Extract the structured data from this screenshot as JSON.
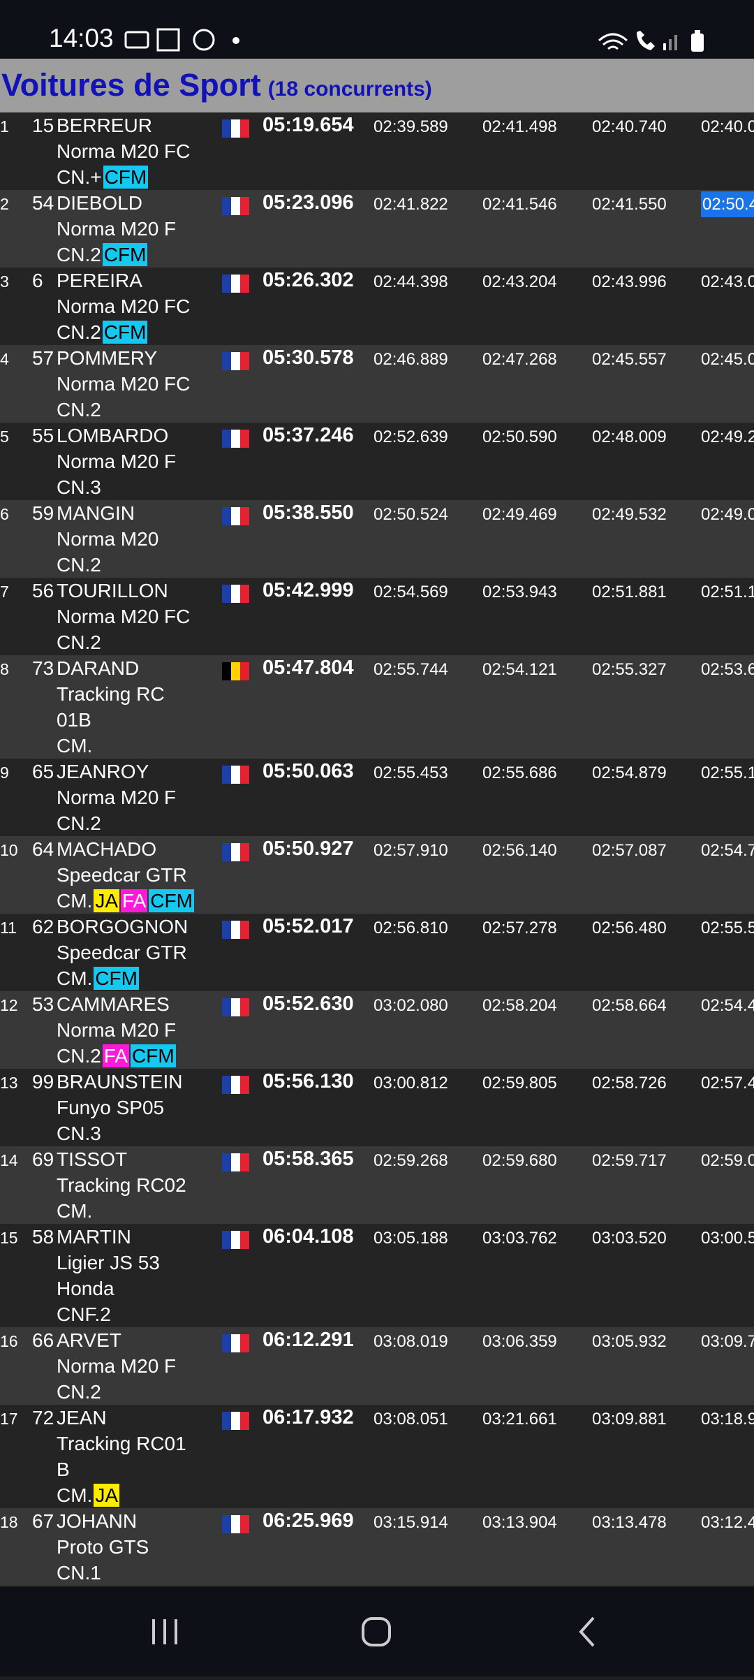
{
  "status_bar": {
    "time": "14:03"
  },
  "header": {
    "title": "Voitures de Sport",
    "subtitle": "(18 concurrents)"
  },
  "rows": [
    {
      "pos": "1",
      "num": "15",
      "name": "BERREUR",
      "car": [
        "Norma M20 FC"
      ],
      "class": "CN.+",
      "tags": [
        "CFM"
      ],
      "country": "fr",
      "total": "05:19.654",
      "laps": [
        "02:39.589",
        "02:41.498",
        "02:40.740",
        "02:40.0"
      ]
    },
    {
      "pos": "2",
      "num": "54",
      "name": "DIEBOLD",
      "car": [
        "Norma M20 F"
      ],
      "class": "CN.2",
      "tags": [
        "CFM"
      ],
      "country": "fr",
      "total": "05:23.096",
      "laps": [
        "02:41.822",
        "02:41.546",
        "02:41.550",
        "02:50.4"
      ],
      "highlight_lap": 3
    },
    {
      "pos": "3",
      "num": "6",
      "name": "PEREIRA",
      "car": [
        "Norma M20 FC"
      ],
      "class": "CN.2",
      "tags": [
        "CFM"
      ],
      "country": "fr",
      "total": "05:26.302",
      "laps": [
        "02:44.398",
        "02:43.204",
        "02:43.996",
        "02:43.0"
      ]
    },
    {
      "pos": "4",
      "num": "57",
      "name": "POMMERY",
      "car": [
        "Norma M20 FC"
      ],
      "class": "CN.2",
      "tags": [],
      "country": "fr",
      "total": "05:30.578",
      "laps": [
        "02:46.889",
        "02:47.268",
        "02:45.557",
        "02:45.0"
      ]
    },
    {
      "pos": "5",
      "num": "55",
      "name": "LOMBARDO",
      "car": [
        "Norma M20 F"
      ],
      "class": "CN.3",
      "tags": [],
      "country": "fr",
      "total": "05:37.246",
      "laps": [
        "02:52.639",
        "02:50.590",
        "02:48.009",
        "02:49.2"
      ]
    },
    {
      "pos": "6",
      "num": "59",
      "name": "MANGIN",
      "car": [
        "Norma M20"
      ],
      "class": "CN.2",
      "tags": [],
      "country": "fr",
      "total": "05:38.550",
      "laps": [
        "02:50.524",
        "02:49.469",
        "02:49.532",
        "02:49.0"
      ]
    },
    {
      "pos": "7",
      "num": "56",
      "name": "TOURILLON",
      "car": [
        "Norma M20 FC"
      ],
      "class": "CN.2",
      "tags": [],
      "country": "fr",
      "total": "05:42.999",
      "laps": [
        "02:54.569",
        "02:53.943",
        "02:51.881",
        "02:51.1"
      ]
    },
    {
      "pos": "8",
      "num": "73",
      "name": "DARAND",
      "car": [
        "Tracking RC",
        "01B"
      ],
      "class": "CM.",
      "tags": [],
      "country": "be",
      "total": "05:47.804",
      "laps": [
        "02:55.744",
        "02:54.121",
        "02:55.327",
        "02:53.6"
      ]
    },
    {
      "pos": "9",
      "num": "65",
      "name": "JEANROY",
      "car": [
        "Norma M20 F"
      ],
      "class": "CN.2",
      "tags": [],
      "country": "fr",
      "total": "05:50.063",
      "laps": [
        "02:55.453",
        "02:55.686",
        "02:54.879",
        "02:55.1"
      ]
    },
    {
      "pos": "10",
      "num": "64",
      "name": "MACHADO",
      "car": [
        "Speedcar GTR"
      ],
      "class": "CM.",
      "tags": [
        "JA",
        "FA",
        "CFM"
      ],
      "country": "fr",
      "total": "05:50.927",
      "laps": [
        "02:57.910",
        "02:56.140",
        "02:57.087",
        "02:54.7"
      ]
    },
    {
      "pos": "11",
      "num": "62",
      "name": "BORGOGNON",
      "car": [
        "Speedcar GTR"
      ],
      "class": "CM.",
      "tags": [
        "CFM"
      ],
      "country": "fr",
      "total": "05:52.017",
      "laps": [
        "02:56.810",
        "02:57.278",
        "02:56.480",
        "02:55.5"
      ]
    },
    {
      "pos": "12",
      "num": "53",
      "name": "CAMMARES",
      "car": [
        "Norma M20 F"
      ],
      "class": "CN.2",
      "tags": [
        "FA",
        "CFM"
      ],
      "country": "fr",
      "total": "05:52.630",
      "laps": [
        "03:02.080",
        "02:58.204",
        "02:58.664",
        "02:54.4"
      ]
    },
    {
      "pos": "13",
      "num": "99",
      "name": "BRAUNSTEIN",
      "car": [
        "Funyo SP05"
      ],
      "class": "CN.3",
      "tags": [],
      "country": "fr",
      "total": "05:56.130",
      "laps": [
        "03:00.812",
        "02:59.805",
        "02:58.726",
        "02:57.4"
      ]
    },
    {
      "pos": "14",
      "num": "69",
      "name": "TISSOT",
      "car": [
        "Tracking RC02"
      ],
      "class": "CM.",
      "tags": [],
      "country": "fr",
      "total": "05:58.365",
      "laps": [
        "02:59.268",
        "02:59.680",
        "02:59.717",
        "02:59.0"
      ]
    },
    {
      "pos": "15",
      "num": "58",
      "name": "MARTIN",
      "car": [
        "Ligier JS 53",
        "Honda"
      ],
      "class": "CNF.2",
      "tags": [],
      "country": "fr",
      "total": "06:04.108",
      "laps": [
        "03:05.188",
        "03:03.762",
        "03:03.520",
        "03:00.5"
      ]
    },
    {
      "pos": "16",
      "num": "66",
      "name": "ARVET",
      "car": [
        "Norma M20 F"
      ],
      "class": "CN.2",
      "tags": [],
      "country": "fr",
      "total": "06:12.291",
      "laps": [
        "03:08.019",
        "03:06.359",
        "03:05.932",
        "03:09.7"
      ]
    },
    {
      "pos": "17",
      "num": "72",
      "name": "JEAN",
      "car": [
        "Tracking RC01",
        "B"
      ],
      "class": "CM.",
      "tags": [
        "JA"
      ],
      "country": "fr",
      "total": "06:17.932",
      "laps": [
        "03:08.051",
        "03:21.661",
        "03:09.881",
        "03:18.9"
      ]
    },
    {
      "pos": "18",
      "num": "67",
      "name": "JOHANN",
      "car": [
        "Proto GTS"
      ],
      "class": "CN.1",
      "tags": [],
      "country": "fr",
      "total": "06:25.969",
      "laps": [
        "03:15.914",
        "03:13.904",
        "03:13.478",
        "03:12.4"
      ]
    }
  ]
}
